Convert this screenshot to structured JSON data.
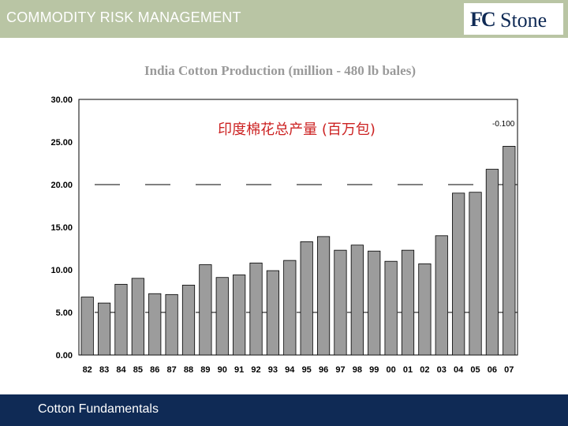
{
  "header": {
    "title": "COMMODITY RISK MANAGEMENT",
    "logo_fc": "FC",
    "logo_stone": "Stone"
  },
  "footer": {
    "text": "Cotton Fundamentals"
  },
  "colors": {
    "header_band": "#b9c5a4",
    "footer_band": "#0f2a55",
    "bar_fill": "#9c9c9c",
    "annotation": "#cc2222"
  },
  "chart_data": {
    "type": "bar",
    "title": "India Cotton Production (million - 480 lb bales)",
    "annotation": "印度棉花总产量 (百万包)",
    "side_label": "-0.100",
    "xlabel": "",
    "ylabel": "",
    "ylim": [
      0,
      30
    ],
    "yticks": [
      "0.00",
      "5.00",
      "10.00",
      "15.00",
      "20.00",
      "25.00",
      "30.00"
    ],
    "grid": false,
    "categories": [
      "82",
      "83",
      "84",
      "85",
      "86",
      "87",
      "88",
      "89",
      "90",
      "91",
      "92",
      "93",
      "94",
      "95",
      "96",
      "97",
      "98",
      "99",
      "00",
      "01",
      "02",
      "03",
      "04",
      "05",
      "06",
      "07"
    ],
    "series": [
      {
        "values": [
          6.8,
          6.1,
          8.3,
          9.0,
          7.2,
          7.1,
          8.2,
          10.6,
          9.1,
          9.4,
          10.8,
          9.9,
          11.1,
          13.3,
          13.9,
          12.3,
          12.9,
          12.2,
          11.0,
          12.3,
          10.7,
          14.0,
          19.0,
          19.1,
          21.8,
          24.5
        ]
      }
    ]
  }
}
